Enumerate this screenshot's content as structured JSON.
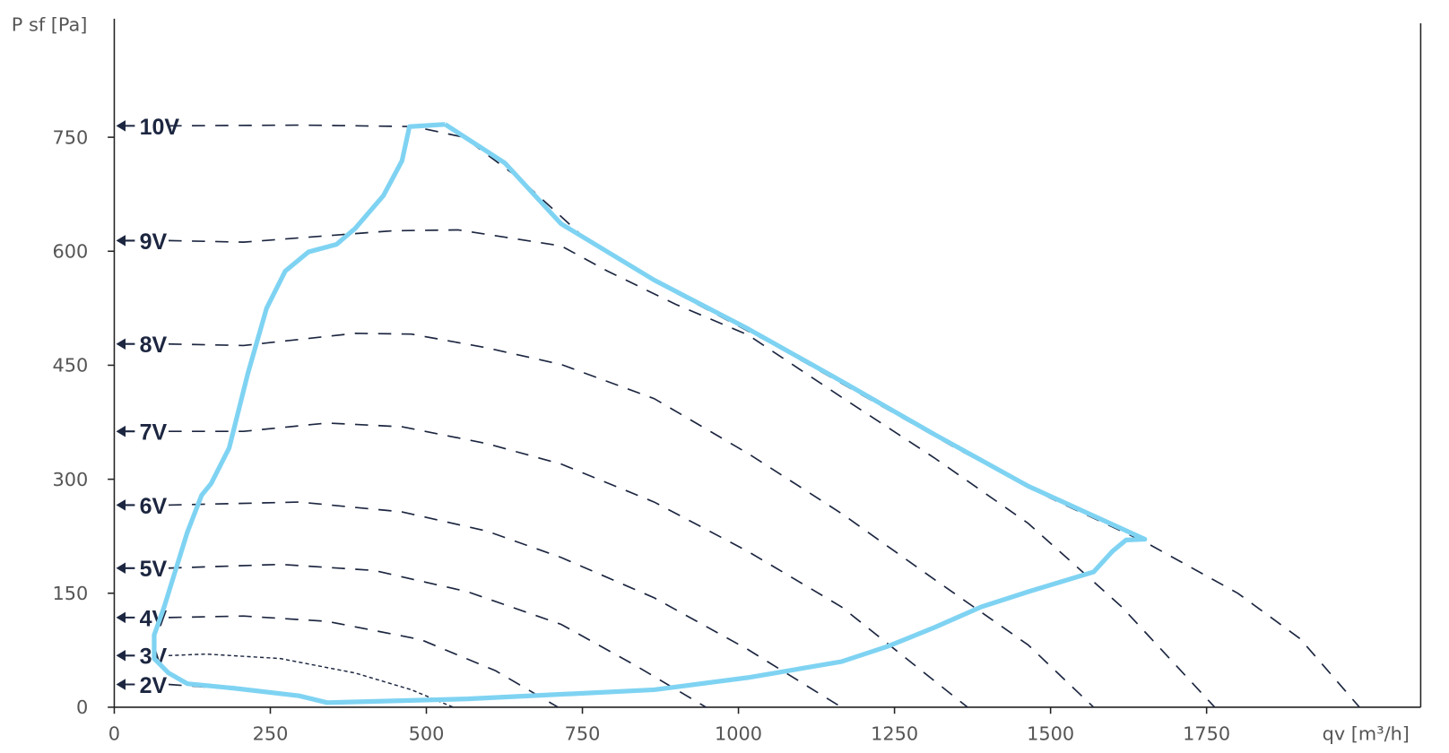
{
  "chart_data": {
    "type": "line",
    "y_label": "P sf [Pa]",
    "x_label": "qv [m³/h]",
    "xlim": [
      0,
      2093
    ],
    "ylim": [
      0,
      906
    ],
    "xticks": [
      0,
      250,
      500,
      750,
      1000,
      1250,
      1500,
      1750
    ],
    "yticks": [
      0,
      150,
      300,
      450,
      600,
      750
    ],
    "grid": false,
    "series": [
      {
        "name": "10V",
        "color": "#1c2640",
        "line_style": "dashed",
        "x": [
          87,
          300,
          480,
          560,
          650,
          750,
          900,
          1050,
          1200,
          1350,
          1500,
          1650,
          1800,
          1900,
          1995
        ],
        "values": [
          765,
          766,
          764,
          750,
          695,
          620,
          545,
          480,
          410,
          340,
          275,
          218,
          150,
          90,
          0
        ]
      },
      {
        "name": "9V",
        "color": "#1c2640",
        "line_style": "dashed",
        "x": [
          87,
          207,
          446,
          551,
          716,
          790,
          900,
          1015,
          1165,
          1314,
          1464,
          1614,
          1763
        ],
        "values": [
          614,
          612,
          627,
          628,
          607,
          574,
          530,
          490,
          408,
          328,
          242,
          132,
          0
        ]
      },
      {
        "name": "8V",
        "color": "#1c2640",
        "line_style": "dashed",
        "x": [
          87,
          207,
          386,
          476,
          596,
          716,
          865,
          1015,
          1165,
          1314,
          1464,
          1569
        ],
        "values": [
          478,
          476,
          492,
          491,
          473,
          451,
          406,
          334,
          255,
          168,
          82,
          0
        ]
      },
      {
        "name": "7V",
        "color": "#1c2640",
        "line_style": "dashed",
        "x": [
          87,
          207,
          341,
          461,
          596,
          716,
          865,
          1015,
          1165,
          1269,
          1367
        ],
        "values": [
          363,
          363,
          374,
          369,
          347,
          320,
          270,
          205,
          132,
          64,
          0
        ]
      },
      {
        "name": "6V",
        "color": "#1c2640",
        "line_style": "dashed",
        "x": [
          87,
          296,
          461,
          596,
          716,
          865,
          1015,
          1165
        ],
        "values": [
          266,
          270,
          257,
          232,
          197,
          144,
          76,
          0
        ]
      },
      {
        "name": "5V",
        "color": "#1c2640",
        "line_style": "dashed",
        "x": [
          87,
          266,
          416,
          566,
          716,
          835,
          948
        ],
        "values": [
          183,
          188,
          180,
          152,
          109,
          55,
          0
        ]
      },
      {
        "name": "4V",
        "color": "#1c2640",
        "line_style": "dashed",
        "x": [
          87,
          207,
          341,
          491,
          611,
          711
        ],
        "values": [
          118,
          120,
          113,
          89,
          48,
          0
        ]
      },
      {
        "name": "3V",
        "color": "#1c2640",
        "line_style": "dotted",
        "x": [
          87,
          147,
          266,
          386,
          476,
          543
        ],
        "values": [
          68,
          70,
          64,
          45,
          23,
          0
        ]
      },
      {
        "name": "2V",
        "color": "#1c2640",
        "line_style": "dashed",
        "x": [
          87,
          207,
          296,
          341
        ],
        "values": [
          30,
          23,
          15,
          6
        ]
      }
    ],
    "envelope": {
      "color": "#7fd3f2",
      "x": [
        530,
        473,
        461,
        431,
        386,
        356,
        311,
        274,
        244,
        214,
        184,
        155,
        140,
        117,
        80,
        64,
        64,
        87,
        117,
        192,
        296,
        341,
        566,
        865,
        1015,
        1165,
        1239,
        1314,
        1389,
        1464,
        1569,
        1599,
        1621,
        1651,
        1464,
        1314,
        1165,
        1015,
        865,
        716,
        626,
        530
      ],
      "values": [
        767,
        764,
        719,
        673,
        630,
        609,
        599,
        574,
        525,
        439,
        341,
        294,
        279,
        230,
        132,
        95,
        64,
        45,
        31,
        25,
        15,
        6,
        11,
        23,
        39,
        60,
        80,
        105,
        132,
        152,
        178,
        205,
        220,
        221,
        291,
        359,
        429,
        498,
        562,
        636,
        716,
        767
      ]
    }
  }
}
